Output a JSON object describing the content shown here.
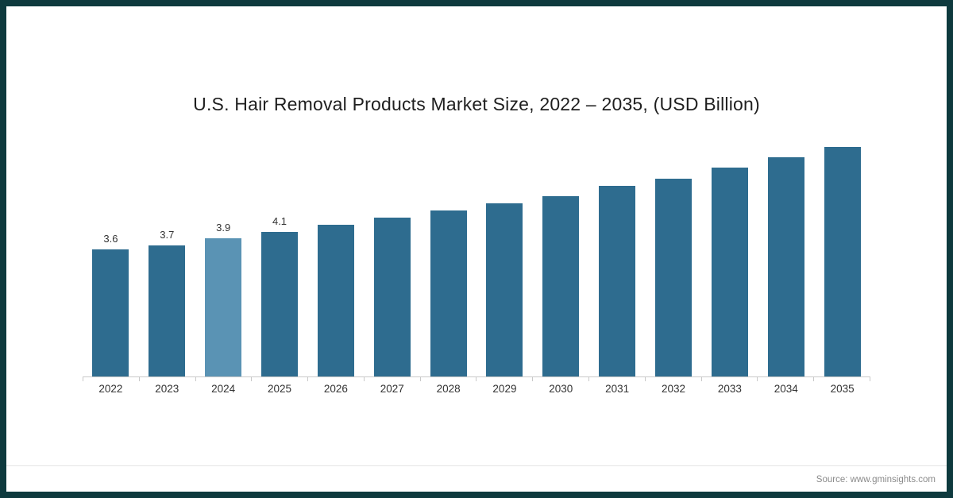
{
  "chart_data": {
    "type": "bar",
    "title": "U.S. Hair Removal Products Market Size, 2022 – 2035, (USD Billion)",
    "categories": [
      "2022",
      "2023",
      "2024",
      "2025",
      "2026",
      "2027",
      "2028",
      "2029",
      "2030",
      "2031",
      "2032",
      "2033",
      "2034",
      "2035"
    ],
    "values": [
      3.6,
      3.7,
      3.9,
      4.1,
      4.3,
      4.5,
      4.7,
      4.9,
      5.1,
      5.4,
      5.6,
      5.9,
      6.2,
      6.6
    ],
    "data_labels": [
      "3.6",
      "3.7",
      "3.9",
      "4.1",
      "",
      "",
      "",
      "",
      "",
      "",
      "",
      "",
      "",
      ""
    ],
    "highlight_index": 2,
    "bar_color": "#2e6c8f",
    "highlight_color": "#5a93b4",
    "xlabel": "",
    "ylabel": "",
    "ylim": [
      0,
      7
    ],
    "grid": false,
    "legend": "none",
    "axis_line_color": "#c9c9c9"
  },
  "footer": {
    "source": "Source: www.gminsights.com"
  },
  "frame_color": "#0e3a3e"
}
